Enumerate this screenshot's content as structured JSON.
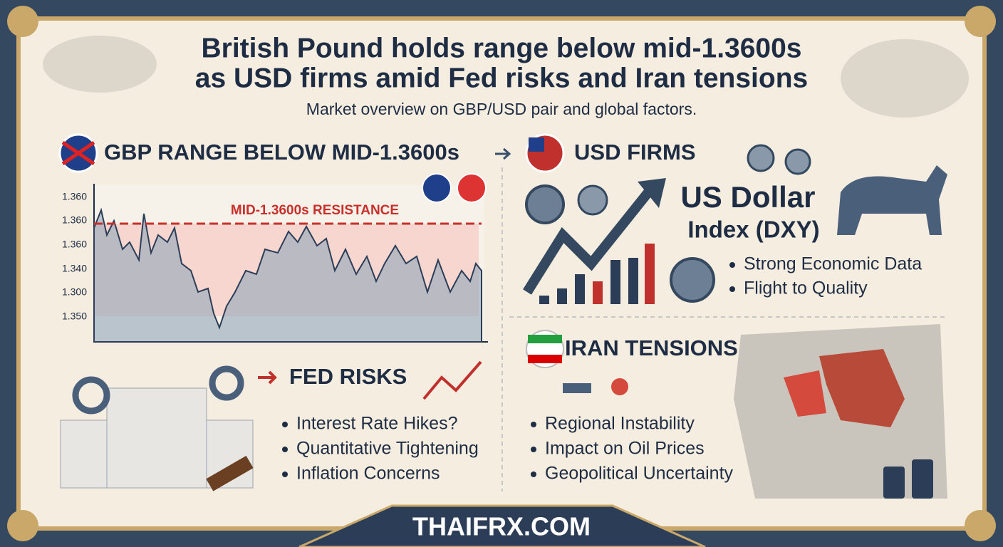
{
  "header": {
    "title_lines": [
      "British Pound holds range below mid-1.3600s",
      "as USD firms amid Fed risks and Iran tensions"
    ],
    "subtitle": "Market overview on GBP/USD pair and global factors."
  },
  "gbp_panel": {
    "heading": "GBP RANGE BELOW MID-1.3600s",
    "resistance_label": "MID-1.3600s RESISTANCE",
    "axis_labels": [
      "1.360",
      "1.360",
      "1.360",
      "1.340",
      "1.300",
      "1.350"
    ]
  },
  "usd_panel": {
    "heading": "USD FIRMS",
    "index_lines": [
      "US Dollar",
      "Index (DXY)"
    ],
    "bullets": [
      "Strong Economic Data",
      "Flight to Quality"
    ]
  },
  "fed_panel": {
    "heading": "FED RISKS",
    "bullets": [
      "Interest Rate Hikes?",
      "Quantitative Tightening",
      "Inflation Concerns"
    ]
  },
  "iran_panel": {
    "heading": "IRAN TENSIONS",
    "bullets": [
      "Regional Instability",
      "Impact on Oil Prices",
      "Geopolitical Uncertainty"
    ]
  },
  "footer": {
    "site": "THAIFRX.COM"
  }
}
